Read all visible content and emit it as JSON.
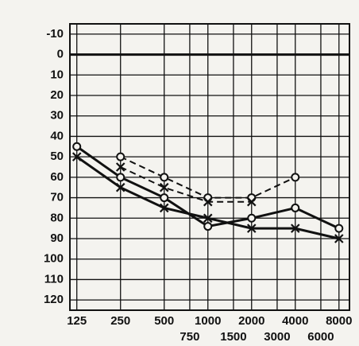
{
  "chart_data": {
    "type": "line",
    "x": [
      125,
      250,
      500,
      1000,
      2000,
      4000,
      8000
    ],
    "xlim": [
      112,
      9450
    ],
    "xscale": "log",
    "xticks": [
      125,
      250,
      500,
      1000,
      2000,
      4000,
      8000
    ],
    "xticks_lower": [
      750,
      1500,
      3000,
      6000
    ],
    "ylim": [
      -15,
      125
    ],
    "y_inverted": true,
    "yticks": [
      -10,
      0,
      10,
      20,
      30,
      40,
      50,
      60,
      70,
      80,
      90,
      100,
      110,
      120
    ],
    "grid": true,
    "series": [
      {
        "color": "#111111",
        "marker": "circle",
        "dashed": false,
        "values": [
          45,
          60,
          70,
          84,
          80,
          75,
          85
        ]
      },
      {
        "color": "#111111",
        "marker": "cross",
        "dashed": false,
        "values": [
          50,
          65,
          75,
          80,
          85,
          85,
          90
        ]
      },
      {
        "color": "#111111",
        "marker": "circle",
        "dashed": true,
        "values": [
          null,
          50,
          60,
          70,
          70,
          60,
          null
        ]
      },
      {
        "color": "#111111",
        "marker": "cross",
        "dashed": true,
        "values": [
          null,
          55,
          65,
          72,
          72,
          null,
          null
        ]
      }
    ]
  }
}
